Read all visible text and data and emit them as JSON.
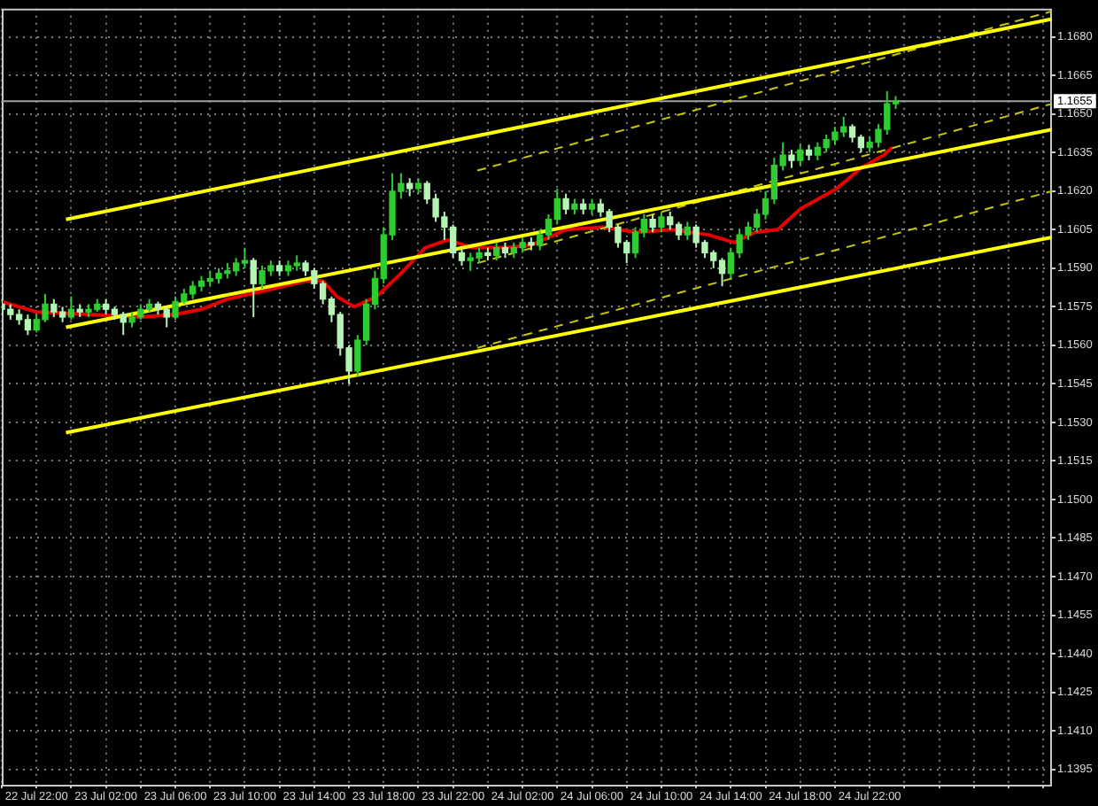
{
  "chart_data": {
    "type": "candlestick",
    "x": [
      "--07-22T20:00",
      "--07-22T20:30",
      "--07-22T21:00",
      "--07-22T21:30",
      "--07-22T22:00",
      "--07-22T22:30",
      "--07-22T23:00",
      "--07-22T23:30",
      "--07-23T00:00",
      "--07-23T00:30",
      "--07-23T01:00",
      "--07-23T01:30",
      "--07-23T02:00",
      "--07-23T02:30",
      "--07-23T03:00",
      "--07-23T03:30",
      "--07-23T04:00",
      "--07-23T04:30",
      "--07-23T05:00",
      "--07-23T05:30",
      "--07-23T06:00",
      "--07-23T06:30",
      "--07-23T07:00",
      "--07-23T07:30",
      "--07-23T08:00",
      "--07-23T08:30",
      "--07-23T09:00",
      "--07-23T09:30",
      "--07-23T10:00",
      "--07-23T10:30",
      "--07-23T11:00",
      "--07-23T11:30",
      "--07-23T12:00",
      "--07-23T12:30",
      "--07-23T13:00",
      "--07-23T13:30",
      "--07-23T14:00",
      "--07-23T14:30",
      "--07-23T15:00",
      "--07-23T15:30",
      "--07-23T16:00",
      "--07-23T16:30",
      "--07-23T17:00",
      "--07-23T17:30",
      "--07-23T18:00",
      "--07-23T18:30",
      "--07-23T19:00",
      "--07-23T19:30",
      "--07-23T20:00",
      "--07-23T20:30",
      "--07-23T21:00",
      "--07-23T21:30",
      "--07-23T22:00",
      "--07-23T22:30",
      "--07-23T23:00",
      "--07-23T23:30",
      "--07-24T00:00",
      "--07-24T00:30",
      "--07-24T01:00",
      "--07-24T01:30",
      "--07-24T02:00",
      "--07-24T02:30",
      "--07-24T03:00",
      "--07-24T03:30",
      "--07-24T04:00",
      "--07-24T04:30",
      "--07-24T05:00",
      "--07-24T05:30",
      "--07-24T06:00",
      "--07-24T06:30",
      "--07-24T07:00",
      "--07-24T07:30",
      "--07-24T08:00",
      "--07-24T08:30",
      "--07-24T09:00",
      "--07-24T09:30",
      "--07-24T10:00",
      "--07-24T10:30",
      "--07-24T11:00",
      "--07-24T11:30",
      "--07-24T12:00",
      "--07-24T12:30",
      "--07-24T13:00",
      "--07-24T13:30",
      "--07-24T14:00",
      "--07-24T14:30",
      "--07-24T15:00",
      "--07-24T15:30",
      "--07-24T16:00",
      "--07-24T16:30",
      "--07-24T17:00",
      "--07-24T17:30",
      "--07-24T18:00",
      "--07-24T18:30",
      "--07-24T19:00",
      "--07-24T19:30",
      "--07-24T20:00",
      "--07-24T20:30",
      "--07-24T21:00",
      "--07-24T21:30",
      "--07-24T22:00",
      "--07-24T22:30",
      "--07-24T23:00",
      "--07-24T23:30"
    ],
    "ohlc": [
      [
        1.1576,
        1.1578,
        1.1572,
        1.1574
      ],
      [
        1.1574,
        1.1576,
        1.157,
        1.1572
      ],
      [
        1.1572,
        1.1574,
        1.1568,
        1.157
      ],
      [
        1.157,
        1.1572,
        1.1564,
        1.1566
      ],
      [
        1.1566,
        1.1572,
        1.1565,
        1.157
      ],
      [
        1.157,
        1.158,
        1.1569,
        1.1576
      ],
      [
        1.1576,
        1.1578,
        1.1571,
        1.1573
      ],
      [
        1.1573,
        1.1575,
        1.1569,
        1.1571
      ],
      [
        1.1571,
        1.1579,
        1.157,
        1.1574
      ],
      [
        1.1574,
        1.1576,
        1.1571,
        1.1573
      ],
      [
        1.1573,
        1.1576,
        1.1571,
        1.1574
      ],
      [
        1.1574,
        1.1578,
        1.1573,
        1.1576
      ],
      [
        1.1576,
        1.1578,
        1.1572,
        1.1574
      ],
      [
        1.1574,
        1.1575,
        1.157,
        1.1572
      ],
      [
        1.1572,
        1.1573,
        1.1564,
        1.1569
      ],
      [
        1.1569,
        1.1573,
        1.1567,
        1.1571
      ],
      [
        1.1571,
        1.1576,
        1.157,
        1.1574
      ],
      [
        1.1574,
        1.1578,
        1.1573,
        1.1576
      ],
      [
        1.1576,
        1.1577,
        1.1572,
        1.1574
      ],
      [
        1.1574,
        1.1575,
        1.1567,
        1.1571
      ],
      [
        1.1571,
        1.1579,
        1.157,
        1.1577
      ],
      [
        1.1577,
        1.1582,
        1.1576,
        1.158
      ],
      [
        1.158,
        1.1585,
        1.1578,
        1.1583
      ],
      [
        1.1583,
        1.1587,
        1.1581,
        1.1585
      ],
      [
        1.1585,
        1.1589,
        1.1583,
        1.1586
      ],
      [
        1.1586,
        1.159,
        1.1584,
        1.1588
      ],
      [
        1.1588,
        1.1592,
        1.1586,
        1.1589
      ],
      [
        1.1589,
        1.1594,
        1.1587,
        1.1592
      ],
      [
        1.1592,
        1.1598,
        1.159,
        1.1593
      ],
      [
        1.1593,
        1.1594,
        1.1571,
        1.1584
      ],
      [
        1.1584,
        1.1591,
        1.1582,
        1.1589
      ],
      [
        1.1589,
        1.1593,
        1.1587,
        1.1591
      ],
      [
        1.1591,
        1.1593,
        1.1587,
        1.1589
      ],
      [
        1.1589,
        1.1593,
        1.1587,
        1.1591
      ],
      [
        1.1591,
        1.1595,
        1.1589,
        1.1592
      ],
      [
        1.1592,
        1.1593,
        1.1587,
        1.1589
      ],
      [
        1.1589,
        1.159,
        1.1582,
        1.1584
      ],
      [
        1.1584,
        1.1585,
        1.1576,
        1.1578
      ],
      [
        1.1578,
        1.1579,
        1.1569,
        1.1572
      ],
      [
        1.1572,
        1.1573,
        1.1556,
        1.1559
      ],
      [
        1.1559,
        1.156,
        1.1545,
        1.155
      ],
      [
        1.155,
        1.1564,
        1.1548,
        1.1562
      ],
      [
        1.1562,
        1.1578,
        1.156,
        1.1576
      ],
      [
        1.1576,
        1.1589,
        1.1574,
        1.1586
      ],
      [
        1.1586,
        1.1606,
        1.1584,
        1.1603
      ],
      [
        1.1603,
        1.1627,
        1.1601,
        1.162
      ],
      [
        1.162,
        1.1627,
        1.1617,
        1.1623
      ],
      [
        1.1623,
        1.1625,
        1.1618,
        1.1621
      ],
      [
        1.1621,
        1.1625,
        1.1619,
        1.1623
      ],
      [
        1.1623,
        1.1624,
        1.1615,
        1.1617
      ],
      [
        1.1617,
        1.1619,
        1.1608,
        1.161
      ],
      [
        1.161,
        1.1612,
        1.1601,
        1.1606
      ],
      [
        1.1606,
        1.1607,
        1.1594,
        1.1596
      ],
      [
        1.1596,
        1.1598,
        1.1591,
        1.1593
      ],
      [
        1.1593,
        1.1596,
        1.1589,
        1.1594
      ],
      [
        1.1594,
        1.1598,
        1.1592,
        1.1596
      ],
      [
        1.1596,
        1.1598,
        1.1593,
        1.1595
      ],
      [
        1.1595,
        1.16,
        1.1593,
        1.1598
      ],
      [
        1.1598,
        1.16,
        1.1594,
        1.1596
      ],
      [
        1.1596,
        1.16,
        1.1594,
        1.1598
      ],
      [
        1.1598,
        1.1602,
        1.1596,
        1.16
      ],
      [
        1.16,
        1.1602,
        1.1597,
        1.1599
      ],
      [
        1.1599,
        1.1605,
        1.1597,
        1.1603
      ],
      [
        1.1603,
        1.1611,
        1.1601,
        1.1609
      ],
      [
        1.1609,
        1.1621,
        1.1607,
        1.1617
      ],
      [
        1.1617,
        1.1619,
        1.1611,
        1.1613
      ],
      [
        1.1613,
        1.1617,
        1.1611,
        1.1615
      ],
      [
        1.1615,
        1.1617,
        1.1611,
        1.1613
      ],
      [
        1.1613,
        1.1617,
        1.1611,
        1.1615
      ],
      [
        1.1615,
        1.1617,
        1.161,
        1.1612
      ],
      [
        1.1612,
        1.1613,
        1.1604,
        1.1606
      ],
      [
        1.1606,
        1.1607,
        1.1598,
        1.16
      ],
      [
        1.16,
        1.1601,
        1.1592,
        1.1596
      ],
      [
        1.1596,
        1.1606,
        1.1594,
        1.1604
      ],
      [
        1.1604,
        1.1611,
        1.1602,
        1.1609
      ],
      [
        1.1609,
        1.1611,
        1.1604,
        1.1606
      ],
      [
        1.1606,
        1.1612,
        1.1604,
        1.161
      ],
      [
        1.161,
        1.1612,
        1.1605,
        1.1607
      ],
      [
        1.1607,
        1.1608,
        1.1601,
        1.1603
      ],
      [
        1.1603,
        1.1608,
        1.1601,
        1.1606
      ],
      [
        1.1606,
        1.1607,
        1.1598,
        1.16
      ],
      [
        1.16,
        1.1601,
        1.1594,
        1.1596
      ],
      [
        1.1596,
        1.1597,
        1.159,
        1.1593
      ],
      [
        1.1593,
        1.1594,
        1.1583,
        1.1588
      ],
      [
        1.1588,
        1.1598,
        1.1586,
        1.1596
      ],
      [
        1.1596,
        1.1605,
        1.1594,
        1.1603
      ],
      [
        1.1603,
        1.1608,
        1.1601,
        1.1606
      ],
      [
        1.1606,
        1.1613,
        1.1604,
        1.1611
      ],
      [
        1.1611,
        1.162,
        1.1609,
        1.1617
      ],
      [
        1.1617,
        1.1633,
        1.1615,
        1.163
      ],
      [
        1.163,
        1.1639,
        1.1628,
        1.1634
      ],
      [
        1.1634,
        1.1636,
        1.1629,
        1.1632
      ],
      [
        1.1632,
        1.1638,
        1.163,
        1.1636
      ],
      [
        1.1636,
        1.1638,
        1.1632,
        1.1634
      ],
      [
        1.1634,
        1.1639,
        1.1632,
        1.1637
      ],
      [
        1.1637,
        1.1642,
        1.1635,
        1.164
      ],
      [
        1.164,
        1.1645,
        1.1638,
        1.1643
      ],
      [
        1.1643,
        1.1649,
        1.1641,
        1.1645
      ],
      [
        1.1645,
        1.1646,
        1.1639,
        1.1641
      ],
      [
        1.1641,
        1.1642,
        1.1635,
        1.1637
      ],
      [
        1.1637,
        1.1641,
        1.1635,
        1.1639
      ],
      [
        1.1639,
        1.1646,
        1.1637,
        1.1644
      ],
      [
        1.1644,
        1.1659,
        1.1642,
        1.1654
      ],
      [
        1.1654,
        1.1657,
        1.1652,
        1.1655
      ]
    ],
    "colors": [
      "#b4f5b4",
      "#b4f5b4",
      "#b4f5b4",
      "#b4f5b4",
      "#2ecc2e",
      "#2ecc2e",
      "#b4f5b4",
      "#b4f5b4",
      "#2ecc2e",
      "#b4f5b4",
      "#2ecc2e",
      "#2ecc2e",
      "#b4f5b4",
      "#b4f5b4",
      "#b4f5b4",
      "#2ecc2e",
      "#2ecc2e",
      "#2ecc2e",
      "#b4f5b4",
      "#b4f5b4",
      "#2ecc2e",
      "#2ecc2e",
      "#2ecc2e",
      "#2ecc2e",
      "#2ecc2e",
      "#2ecc2e",
      "#2ecc2e",
      "#2ecc2e",
      "#2ecc2e",
      "#b4f5b4",
      "#2ecc2e",
      "#2ecc2e",
      "#b4f5b4",
      "#2ecc2e",
      "#2ecc2e",
      "#b4f5b4",
      "#b4f5b4",
      "#b4f5b4",
      "#b4f5b4",
      "#b4f5b4",
      "#b4f5b4",
      "#2ecc2e",
      "#2ecc2e",
      "#2ecc2e",
      "#2ecc2e",
      "#2ecc2e",
      "#2ecc2e",
      "#b4f5b4",
      "#2ecc2e",
      "#b4f5b4",
      "#b4f5b4",
      "#b4f5b4",
      "#b4f5b4",
      "#b4f5b4",
      "#2ecc2e",
      "#2ecc2e",
      "#b4f5b4",
      "#2ecc2e",
      "#b4f5b4",
      "#2ecc2e",
      "#2ecc2e",
      "#b4f5b4",
      "#2ecc2e",
      "#2ecc2e",
      "#2ecc2e",
      "#b4f5b4",
      "#2ecc2e",
      "#b4f5b4",
      "#2ecc2e",
      "#b4f5b4",
      "#b4f5b4",
      "#b4f5b4",
      "#b4f5b4",
      "#2ecc2e",
      "#2ecc2e",
      "#b4f5b4",
      "#2ecc2e",
      "#b4f5b4",
      "#b4f5b4",
      "#2ecc2e",
      "#b4f5b4",
      "#b4f5b4",
      "#b4f5b4",
      "#b4f5b4",
      "#2ecc2e",
      "#2ecc2e",
      "#2ecc2e",
      "#2ecc2e",
      "#2ecc2e",
      "#2ecc2e",
      "#2ecc2e",
      "#b4f5b4",
      "#2ecc2e",
      "#b4f5b4",
      "#2ecc2e",
      "#2ecc2e",
      "#2ecc2e",
      "#2ecc2e",
      "#b4f5b4",
      "#b4f5b4",
      "#2ecc2e",
      "#2ecc2e",
      "#2ecc2e",
      "#2ecc2e"
    ],
    "series": [
      {
        "type": "line",
        "color": "#ffff00",
        "x": [
          "--07-22T23:42",
          "--07-25T08:30"
        ],
        "values": [
          1.1609,
          1.1687
        ]
      },
      {
        "type": "line",
        "color": "#ffff00",
        "x": [
          "--07-22T23:42",
          "--07-25T08:30"
        ],
        "values": [
          1.1567,
          1.1644
        ]
      },
      {
        "type": "line",
        "color": "#ffff00",
        "x": [
          "--07-22T23:42",
          "--07-25T08:30"
        ],
        "values": [
          1.1526,
          1.1602
        ]
      },
      {
        "type": "line",
        "color": "#c8c800",
        "line_style": "dashed",
        "x": [
          "--07-23T23:24",
          "--07-25T08:30"
        ],
        "values": [
          1.1628,
          1.169
        ]
      },
      {
        "type": "line",
        "color": "#c8c800",
        "line_style": "dashed",
        "x": [
          "--07-23T23:24",
          "--07-25T08:30"
        ],
        "values": [
          1.1592,
          1.1654
        ]
      },
      {
        "type": "line",
        "color": "#c8c800",
        "line_style": "dashed",
        "x": [
          "--07-23T23:24",
          "--07-25T08:30"
        ],
        "values": [
          1.1559,
          1.162
        ]
      },
      {
        "type": "line",
        "color": "#e60000",
        "x": [
          "--07-22T20:00",
          "--07-22T22:00",
          "--07-23T01:00",
          "--07-23T04:00",
          "--07-23T06:00",
          "--07-23T07:30",
          "--07-23T09:00",
          "--07-23T11:00",
          "--07-23T13:30",
          "--07-23T14:30",
          "--07-23T15:18",
          "--07-23T16:18",
          "--07-23T17:36",
          "--07-23T19:00",
          "--07-23T20:24",
          "--07-23T21:42",
          "--07-23T23:06",
          "--07-24T01:00",
          "--07-24T02:30",
          "--07-24T04:30",
          "--07-24T06:36",
          "--07-24T08:36",
          "--07-24T10:36",
          "--07-24T12:42",
          "--07-24T14:12",
          "--07-24T15:24",
          "--07-24T16:42",
          "--07-24T18:00",
          "--07-24T20:06",
          "--07-24T21:30",
          "--07-24T22:48",
          "--07-24T23:18"
        ],
        "values": [
          1.1577,
          1.1573,
          1.1572,
          1.1571,
          1.1572,
          1.1574,
          1.1578,
          1.1581,
          1.1585,
          1.1585,
          1.1579,
          1.1575,
          1.1579,
          1.1588,
          1.1598,
          1.1601,
          1.1598,
          1.1598,
          1.1599,
          1.1605,
          1.1606,
          1.1604,
          1.1605,
          1.1603,
          1.16,
          1.1604,
          1.1605,
          1.1613,
          1.1621,
          1.1629,
          1.1634,
          1.1637
        ]
      }
    ],
    "xlim": [
      "--07-22T20:00",
      "--07-25T08:30"
    ],
    "xticks": [
      {
        "value": "--07-22T20:00",
        "label": null
      },
      {
        "value": "--07-22T22:00",
        "label": "22 Jul 22:00"
      },
      {
        "value": "--07-23T00:00",
        "label": null
      },
      {
        "value": "--07-23T02:00",
        "label": "23 Jul 02:00"
      },
      {
        "value": "--07-23T04:00",
        "label": null
      },
      {
        "value": "--07-23T06:00",
        "label": "23 Jul 06:00"
      },
      {
        "value": "--07-23T08:00",
        "label": null
      },
      {
        "value": "--07-23T10:00",
        "label": "23 Jul 10:00"
      },
      {
        "value": "--07-23T12:00",
        "label": null
      },
      {
        "value": "--07-23T14:00",
        "label": "23 Jul 14:00"
      },
      {
        "value": "--07-23T16:00",
        "label": null
      },
      {
        "value": "--07-23T18:00",
        "label": "23 Jul 18:00"
      },
      {
        "value": "--07-23T20:00",
        "label": null
      },
      {
        "value": "--07-23T22:00",
        "label": "23 Jul 22:00"
      },
      {
        "value": "--07-24T00:00",
        "label": null
      },
      {
        "value": "--07-24T02:00",
        "label": "24 Jul 02:00"
      },
      {
        "value": "--07-24T04:00",
        "label": null
      },
      {
        "value": "--07-24T06:00",
        "label": "24 Jul 06:00"
      },
      {
        "value": "--07-24T08:00",
        "label": null
      },
      {
        "value": "--07-24T10:00",
        "label": "24 Jul 10:00"
      },
      {
        "value": "--07-24T12:00",
        "label": null
      },
      {
        "value": "--07-24T14:00",
        "label": "24 Jul 14:00"
      },
      {
        "value": "--07-24T16:00",
        "label": null
      },
      {
        "value": "--07-24T18:00",
        "label": "24 Jul 18:00"
      },
      {
        "value": "--07-24T20:00",
        "label": null
      },
      {
        "value": "--07-24T22:00",
        "label": "24 Jul 22:00"
      },
      {
        "value": "--07-25T00:00",
        "label": null
      },
      {
        "value": "--07-25T02:00",
        "label": null
      },
      {
        "value": "--07-25T04:00",
        "label": null
      },
      {
        "value": "--07-25T06:00",
        "label": null
      },
      {
        "value": "--07-25T08:00",
        "label": null
      }
    ],
    "ylim": [
      1.1389,
      1.1691
    ],
    "yticks": [
      {
        "value": 1.1395,
        "label": "1.1395"
      },
      {
        "value": 1.141,
        "label": "1.1410"
      },
      {
        "value": 1.1425,
        "label": "1.1425"
      },
      {
        "value": 1.144,
        "label": "1.1440"
      },
      {
        "value": 1.1455,
        "label": "1.1455"
      },
      {
        "value": 1.147,
        "label": "1.1470"
      },
      {
        "value": 1.1485,
        "label": "1.1485"
      },
      {
        "value": 1.15,
        "label": "1.1500"
      },
      {
        "value": 1.1515,
        "label": "1.1515"
      },
      {
        "value": 1.153,
        "label": "1.1530"
      },
      {
        "value": 1.1545,
        "label": "1.1545"
      },
      {
        "value": 1.156,
        "label": "1.1560"
      },
      {
        "value": 1.1575,
        "label": "1.1575"
      },
      {
        "value": 1.159,
        "label": "1.1590"
      },
      {
        "value": 1.1605,
        "label": "1.1605"
      },
      {
        "value": 1.162,
        "label": "1.1620"
      },
      {
        "value": 1.1635,
        "label": "1.1635"
      },
      {
        "value": 1.165,
        "label": "1.1650"
      },
      {
        "value": 1.1665,
        "label": "1.1665"
      },
      {
        "value": 1.168,
        "label": "1.1680"
      }
    ],
    "grid": true,
    "ref_lines": [
      {
        "axis": "y",
        "value": 1.1655,
        "label": "1.1655",
        "color": "#a0a0a0"
      }
    ]
  }
}
